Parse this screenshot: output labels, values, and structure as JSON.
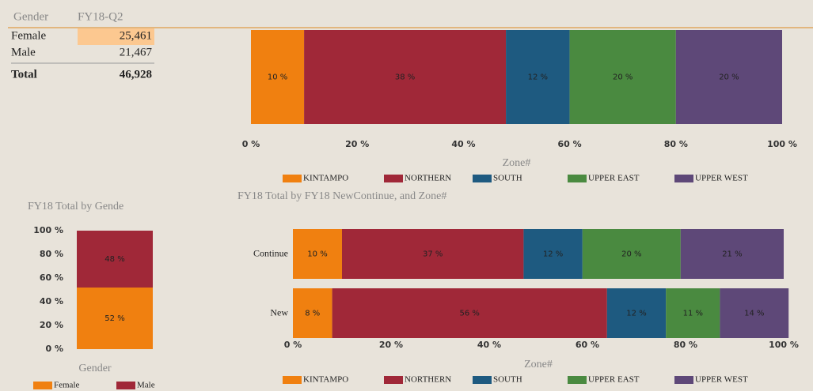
{
  "table": {
    "headers": [
      "Gender",
      "FY18-Q2"
    ],
    "rows": [
      [
        "Female",
        "25,461"
      ],
      [
        "Male",
        "21,467"
      ]
    ],
    "total": [
      "Total",
      "46,928"
    ]
  },
  "chart_data": [
    {
      "type": "hbar",
      "stacked": true,
      "xlabel": "Zone#",
      "categories": [
        null
      ],
      "series": [
        {
          "name": "KINTAMPO",
          "color": "#f08010",
          "values": [
            10
          ],
          "value_labels": [
            "10 %"
          ]
        },
        {
          "name": "NORTHERN",
          "color": "#a02838",
          "values": [
            38
          ],
          "value_labels": [
            "38 %"
          ]
        },
        {
          "name": "SOUTH",
          "color": "#1e5a80",
          "values": [
            12
          ],
          "value_labels": [
            "12 %"
          ]
        },
        {
          "name": "UPPER EAST",
          "color": "#4a8a40",
          "values": [
            20
          ],
          "value_labels": [
            "20 %"
          ]
        },
        {
          "name": "UPPER WEST",
          "color": "#5e4878",
          "values": [
            20
          ],
          "value_labels": [
            "20 %"
          ]
        }
      ],
      "xlim": [
        0,
        100
      ],
      "xticks": [
        {
          "value": 0,
          "label": "0 %"
        },
        {
          "value": 20,
          "label": "20 %"
        },
        {
          "value": 40,
          "label": "40 %"
        },
        {
          "value": 60,
          "label": "60 %"
        },
        {
          "value": 80,
          "label": "80 %"
        },
        {
          "value": 100,
          "label": "100 %"
        }
      ]
    },
    {
      "type": "hbar",
      "stacked": true,
      "title": "FY18 Total by FY18 NewContinue, and Zone#",
      "xlabel": "Zone#",
      "categories": [
        "Continue",
        "New"
      ],
      "series": [
        {
          "name": "KINTAMPO",
          "color": "#f08010",
          "values": [
            10,
            8
          ],
          "value_labels": [
            "10 %",
            "8 %"
          ]
        },
        {
          "name": "NORTHERN",
          "color": "#a02838",
          "values": [
            37,
            56
          ],
          "value_labels": [
            "37 %",
            "56 %"
          ]
        },
        {
          "name": "SOUTH",
          "color": "#1e5a80",
          "values": [
            12,
            12
          ],
          "value_labels": [
            "12 %",
            "12 %"
          ]
        },
        {
          "name": "UPPER EAST",
          "color": "#4a8a40",
          "values": [
            20,
            11
          ],
          "value_labels": [
            "20 %",
            "11 %"
          ]
        },
        {
          "name": "UPPER WEST",
          "color": "#5e4878",
          "values": [
            21,
            14
          ],
          "value_labels": [
            "21 %",
            "14 %"
          ]
        }
      ],
      "xlim": [
        0,
        100
      ],
      "xticks": [
        {
          "value": 0,
          "label": "0 %"
        },
        {
          "value": 20,
          "label": "20 %"
        },
        {
          "value": 40,
          "label": "40 %"
        },
        {
          "value": 60,
          "label": "60 %"
        },
        {
          "value": 80,
          "label": "80 %"
        },
        {
          "value": 100,
          "label": "100 %"
        }
      ]
    },
    {
      "type": "bar",
      "stacked": true,
      "title": "FY18 Total by Gende",
      "xlabel": "Gender",
      "categories": [
        null
      ],
      "series": [
        {
          "name": "Female",
          "color": "#f08010",
          "values": [
            52
          ],
          "value_labels": [
            "52 %"
          ]
        },
        {
          "name": "Male",
          "color": "#a02838",
          "values": [
            48
          ],
          "value_labels": [
            "48 %"
          ]
        }
      ],
      "ylim": [
        0,
        100
      ],
      "yticks": [
        {
          "value": 0,
          "label": "0 %"
        },
        {
          "value": 20,
          "label": "20 %"
        },
        {
          "value": 40,
          "label": "40 %"
        },
        {
          "value": 60,
          "label": "60 %"
        },
        {
          "value": 80,
          "label": "80 %"
        },
        {
          "value": 100,
          "label": "100 %"
        }
      ]
    }
  ]
}
